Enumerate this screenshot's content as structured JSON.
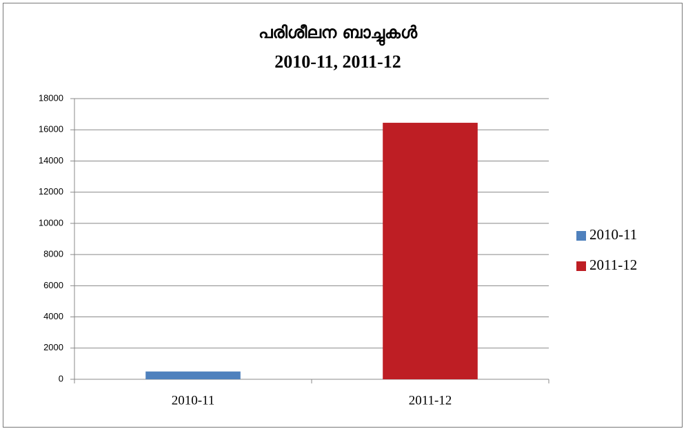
{
  "chart_data": {
    "type": "bar",
    "title": "പരിശീലന ബാച്ചുകൾ",
    "subtitle": "2010-11, 2011-12",
    "categories": [
      "2010-11",
      "2011-12"
    ],
    "series": [
      {
        "name": "2010-11",
        "color": "#4f81bd",
        "values": [
          500,
          null
        ]
      },
      {
        "name": "2011-12",
        "color": "#be1e24",
        "values": [
          null,
          16450
        ]
      }
    ],
    "ylim": [
      0,
      18000
    ],
    "yticks": [
      0,
      2000,
      4000,
      6000,
      8000,
      10000,
      12000,
      14000,
      16000,
      18000
    ],
    "grid": true,
    "legend": "right"
  }
}
